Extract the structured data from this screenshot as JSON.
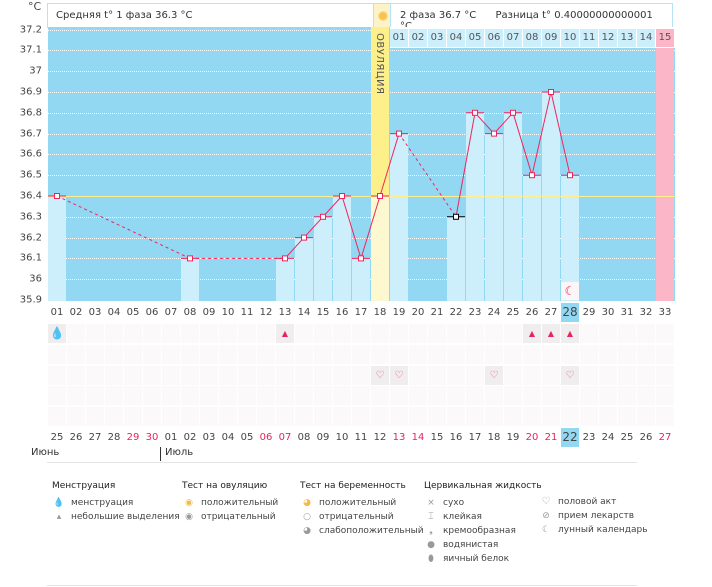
{
  "header": {
    "unit": "°C",
    "phase1": "Средняя t° 1 фаза 36.3 °C",
    "phase2": "2 фаза 36.7 °C",
    "diff": "Разница t° 0.40000000000001 °C",
    "ovulation_label": "ОВУЛЯЦИЯ"
  },
  "colors": {
    "background": "#93d8f2",
    "bar": "#cdeefb",
    "line": "#f0245c",
    "coverline": "#fdf08a",
    "ovulation": "#fdf08a",
    "next_cycle": "#fbb6c8"
  },
  "chart_data": {
    "type": "line",
    "ylim": [
      35.9,
      37.2
    ],
    "y_ticks": [
      "37.2",
      "37.1",
      "37",
      "36.9",
      "36.8",
      "36.7",
      "36.6",
      "36.5",
      "36.4",
      "36.3",
      "36.2",
      "36.1",
      "36",
      "35.9"
    ],
    "coverline": 36.4,
    "ovulation_day": 18,
    "days": [
      1,
      8,
      13,
      14,
      15,
      16,
      17,
      18,
      19,
      22,
      23,
      24,
      25,
      26,
      27,
      28
    ],
    "temps": [
      36.4,
      36.1,
      36.1,
      36.2,
      36.3,
      36.4,
      36.1,
      36.4,
      36.7,
      36.3,
      36.8,
      36.7,
      36.8,
      36.5,
      36.9,
      36.5
    ],
    "excluded_days": [
      22
    ],
    "luteal_days": [
      "01",
      "02",
      "03",
      "04",
      "05",
      "06",
      "07",
      "08",
      "09",
      "10",
      "11",
      "12",
      "13",
      "14",
      "15"
    ]
  },
  "cycle_days": [
    "01",
    "02",
    "03",
    "04",
    "05",
    "06",
    "07",
    "08",
    "09",
    "10",
    "11",
    "12",
    "13",
    "14",
    "15",
    "16",
    "17",
    "18",
    "19",
    "20",
    "21",
    "22",
    "23",
    "24",
    "25",
    "26",
    "27",
    "28",
    "29",
    "30",
    "31",
    "32",
    "33"
  ],
  "current_day": 28,
  "dates": [
    "25",
    "26",
    "27",
    "28",
    "29",
    "30",
    "01",
    "02",
    "03",
    "04",
    "05",
    "06",
    "07",
    "08",
    "09",
    "10",
    "11",
    "12",
    "13",
    "14",
    "15",
    "16",
    "17",
    "18",
    "19",
    "20",
    "21",
    "22",
    "23",
    "24",
    "25",
    "26",
    "27"
  ],
  "weekend_idx": [
    4,
    5,
    11,
    12,
    18,
    19,
    25,
    26,
    32
  ],
  "months": [
    "Июнь",
    "Июль"
  ],
  "marks": {
    "menstruation_heavy": [
      1
    ],
    "spotting": [
      13,
      26,
      27,
      28
    ],
    "intercourse": [
      18,
      19,
      24,
      28
    ],
    "moon": [
      28
    ]
  },
  "legend": {
    "menstruation": {
      "title": "Менструация",
      "items": [
        "менструация",
        "небольшие выделения"
      ]
    },
    "ovulation_test": {
      "title": "Тест на овуляцию",
      "items": [
        "положительный",
        "отрицательный"
      ]
    },
    "pregnancy_test": {
      "title": "Тест на беременность",
      "items": [
        "положительный",
        "отрицательный",
        "слабоположительный"
      ]
    },
    "cervical": {
      "title": "Цервикальная жидкость",
      "items": [
        "сухо",
        "клейкая",
        "кремообразная",
        "водянистая",
        "яичный белок"
      ]
    },
    "other": {
      "items": [
        "половой акт",
        "прием лекарств",
        "лунный календарь"
      ]
    }
  }
}
